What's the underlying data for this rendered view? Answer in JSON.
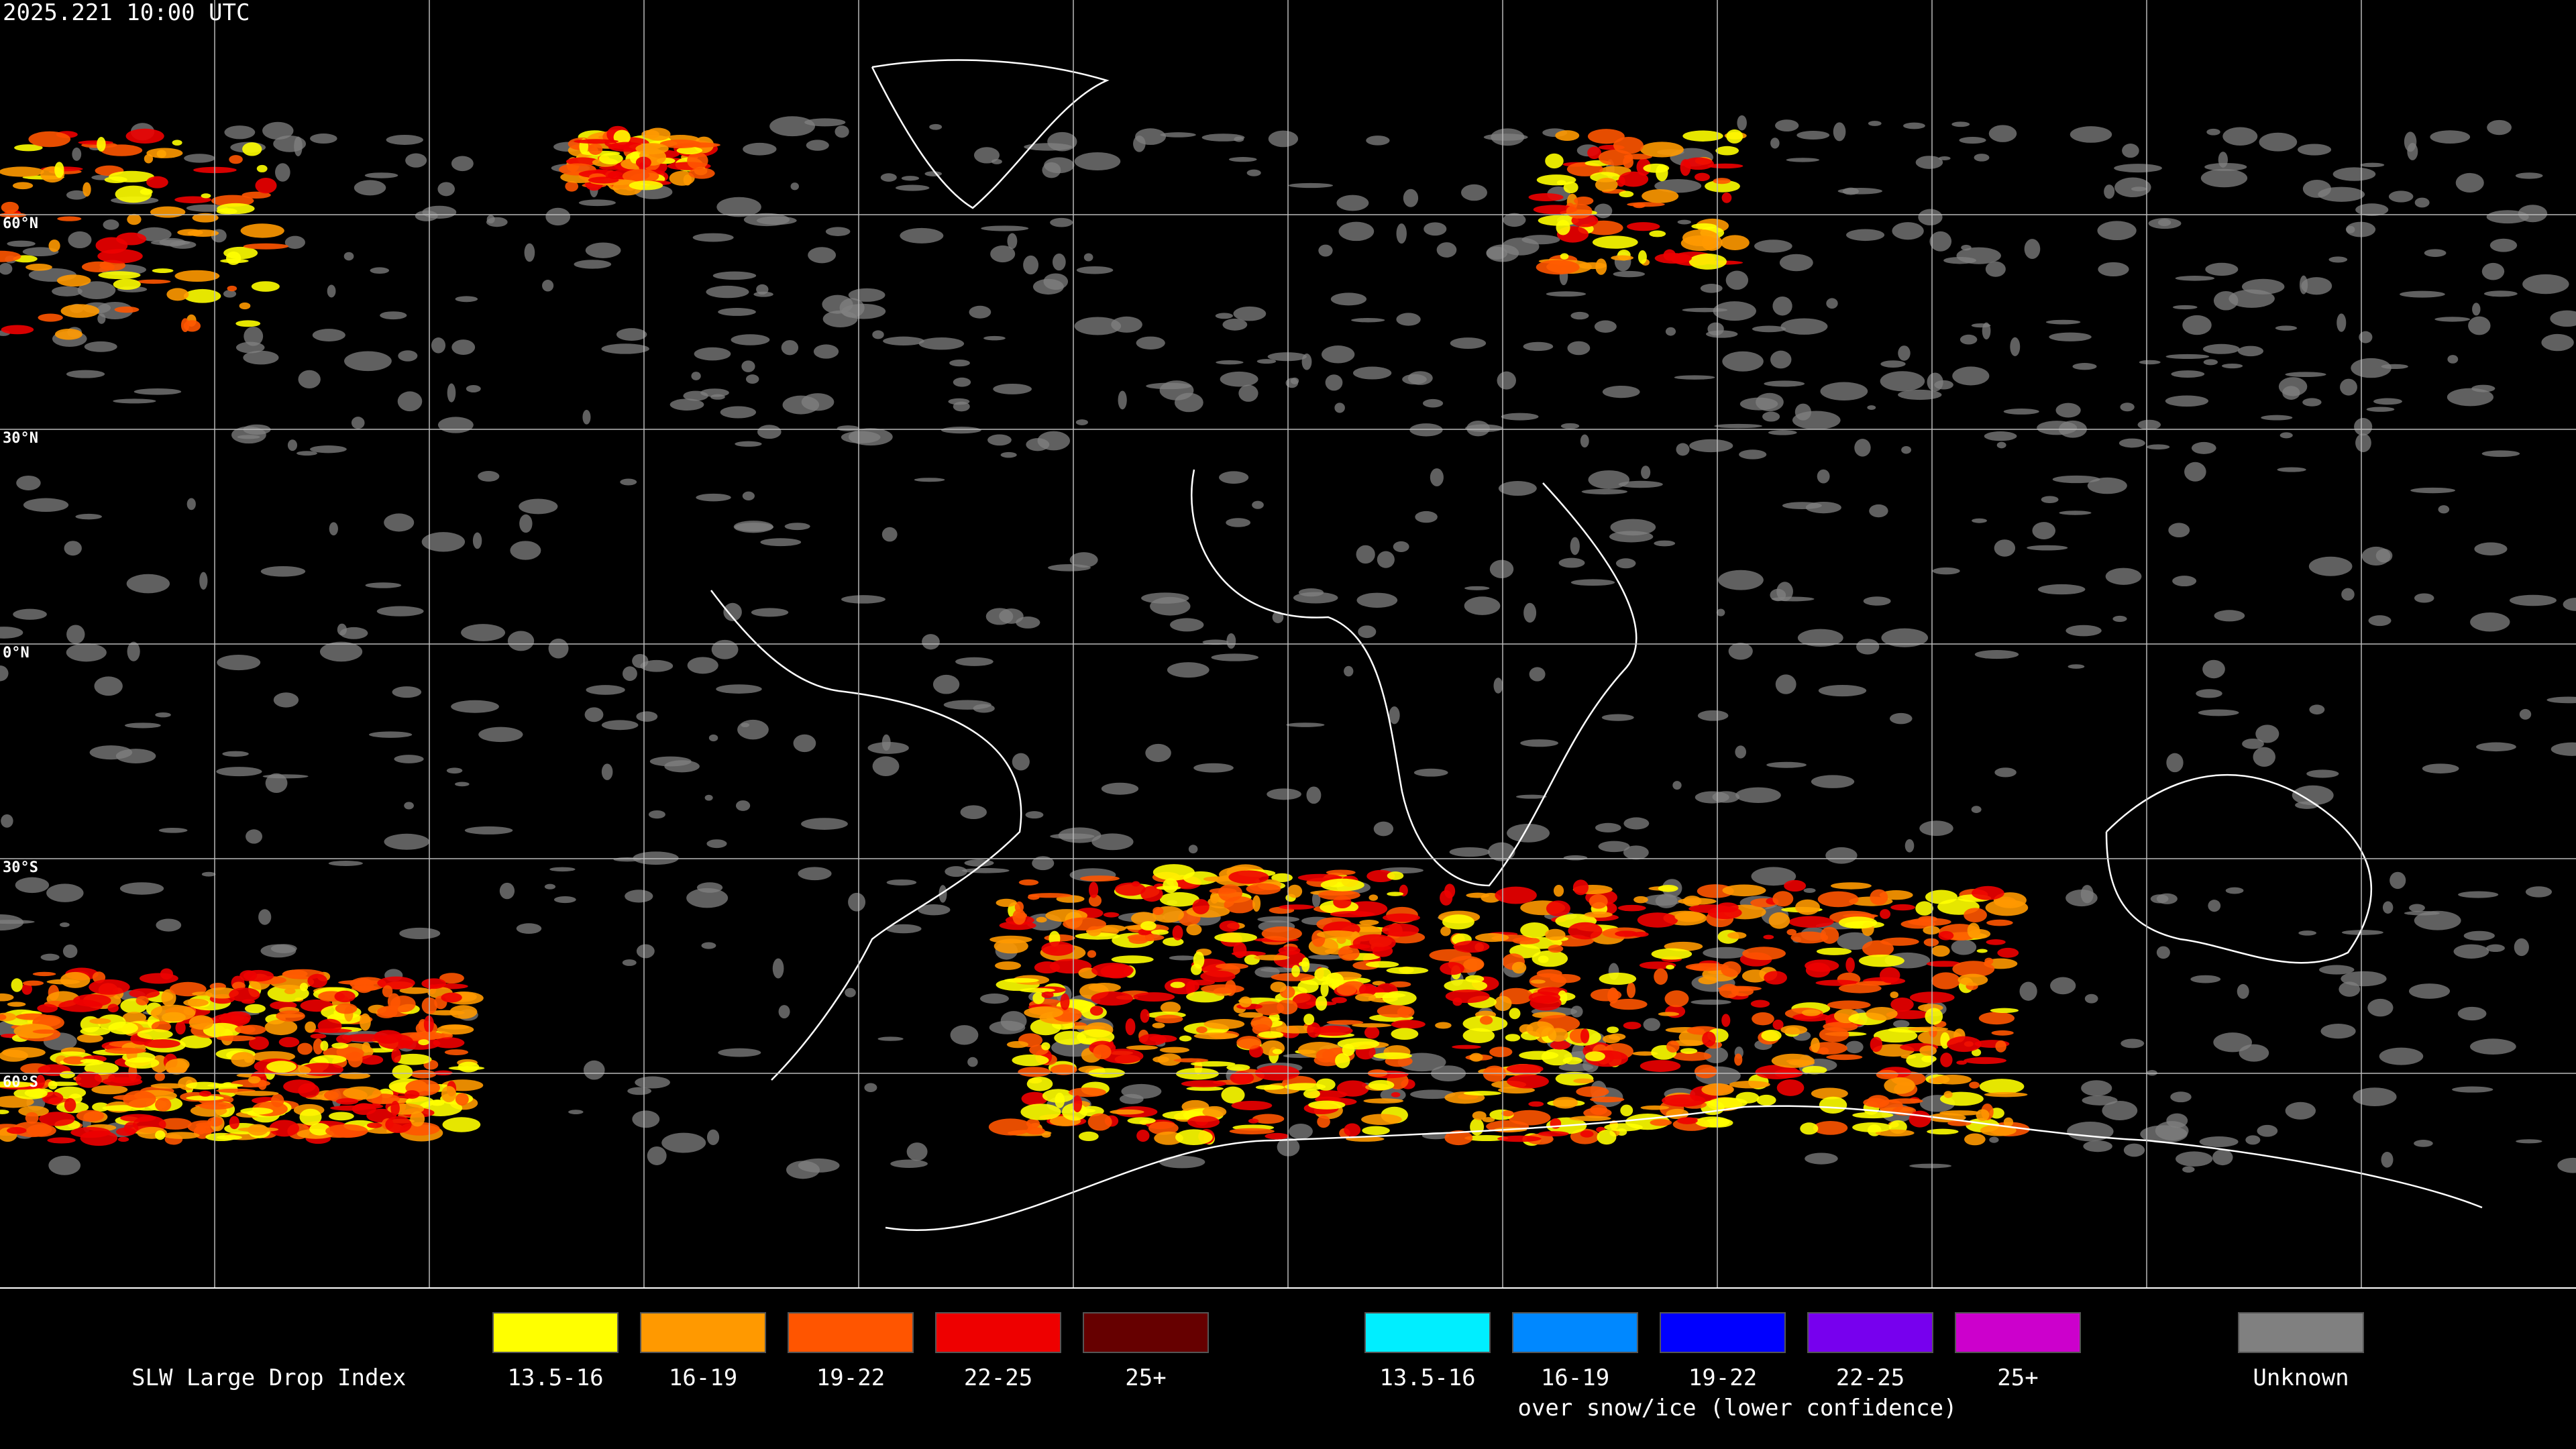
{
  "header": {
    "timestamp": "2025.221 10:00 UTC"
  },
  "lat_labels": [
    "60°N",
    "30°N",
    "0°N",
    "30°S",
    "60°S"
  ],
  "legend": {
    "title": "SLW Large Drop Index",
    "standard": [
      {
        "label": "13.5-16",
        "color": "#ffff00"
      },
      {
        "label": "16-19",
        "color": "#ff9900"
      },
      {
        "label": "19-22",
        "color": "#ff5500"
      },
      {
        "label": "22-25",
        "color": "#ee0000"
      },
      {
        "label": "25+",
        "color": "#660000"
      }
    ],
    "snow_ice": [
      {
        "label": "13.5-16",
        "color": "#00eeff"
      },
      {
        "label": "16-19",
        "color": "#0088ff"
      },
      {
        "label": "19-22",
        "color": "#0000ff"
      },
      {
        "label": "22-25",
        "color": "#7700ee"
      },
      {
        "label": "25+",
        "color": "#cc00cc"
      }
    ],
    "snow_ice_caption": "over snow/ice (lower confidence)",
    "unknown": {
      "label": "Unknown",
      "color": "#808080"
    }
  }
}
